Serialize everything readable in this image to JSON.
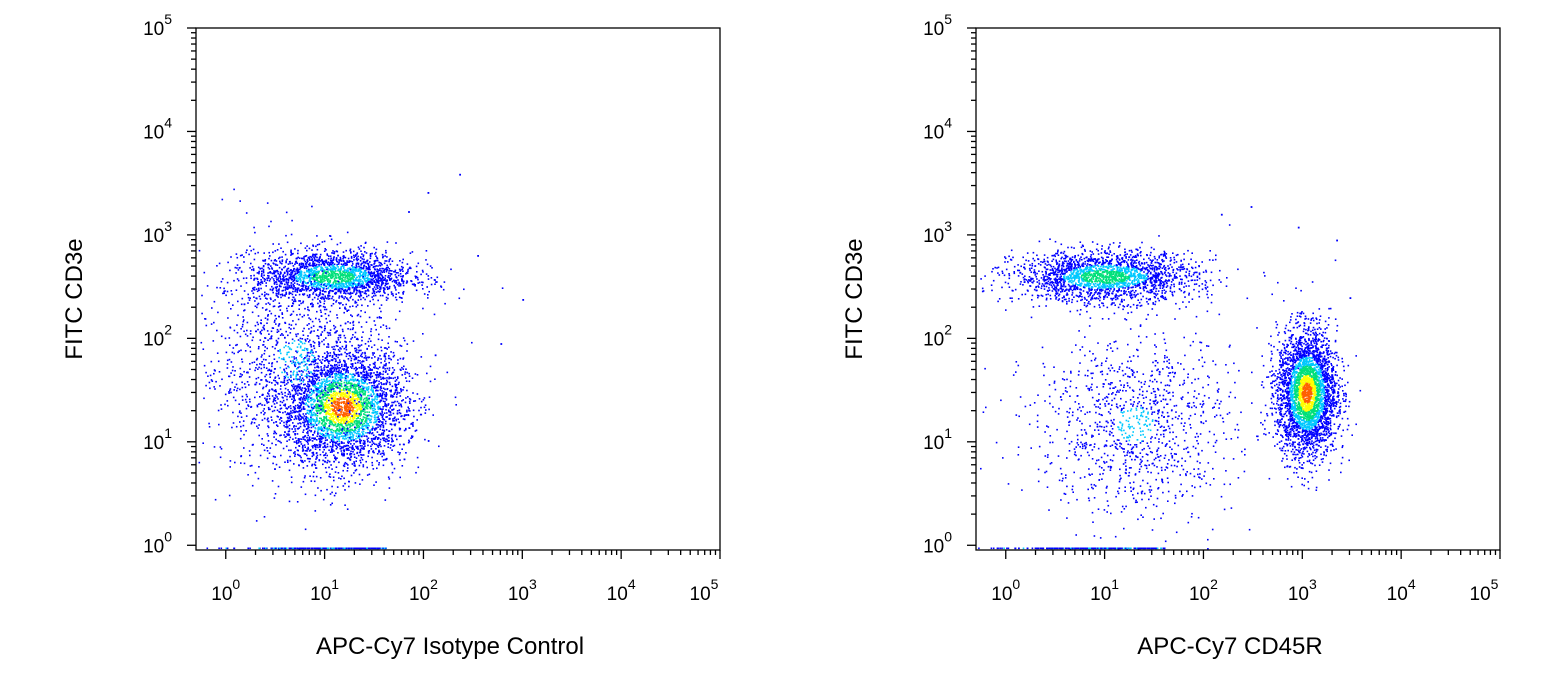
{
  "chart_data": [
    {
      "type": "scatter",
      "title": "",
      "xlabel": "APC-Cy7 Isotype Control",
      "ylabel": "FITC CD3e",
      "x_scale": "log",
      "y_scale": "log",
      "xlim": [
        0.5,
        100000
      ],
      "ylim": [
        0.9,
        100000
      ],
      "x_tick_labels": [
        {
          "base": "10",
          "exp": "0"
        },
        {
          "base": "10",
          "exp": "1"
        },
        {
          "base": "10",
          "exp": "2"
        },
        {
          "base": "10",
          "exp": "3"
        },
        {
          "base": "10",
          "exp": "4"
        },
        {
          "base": "10",
          "exp": "5"
        }
      ],
      "y_tick_labels": [
        {
          "base": "10",
          "exp": "0"
        },
        {
          "base": "10",
          "exp": "1"
        },
        {
          "base": "10",
          "exp": "2"
        },
        {
          "base": "10",
          "exp": "3"
        },
        {
          "base": "10",
          "exp": "4"
        },
        {
          "base": "10",
          "exp": "5"
        }
      ],
      "grid": false,
      "colormap": [
        "#0000ff",
        "#00c8ff",
        "#00e07a",
        "#ffff00",
        "#ff6000"
      ],
      "populations": [
        {
          "x": 15,
          "y": 22,
          "x_spread_decades": 0.32,
          "y_spread_decades": 0.28,
          "fraction": 0.5
        },
        {
          "x": 12,
          "y": 400,
          "x_spread_decades": 0.4,
          "y_spread_decades": 0.12,
          "fraction": 0.3
        },
        {
          "x": 5,
          "y": 60,
          "x_spread_decades": 0.5,
          "y_spread_decades": 0.55,
          "fraction": 0.2
        }
      ],
      "sparse_events": [
        {
          "x": 230,
          "y": 3900
        },
        {
          "x": 110,
          "y": 2600
        },
        {
          "x": 70,
          "y": 1700
        },
        {
          "x": 350,
          "y": 640
        },
        {
          "x": 1000,
          "y": 240
        },
        {
          "x": 600,
          "y": 90
        },
        {
          "x": 130,
          "y": 70
        }
      ]
    },
    {
      "type": "scatter",
      "title": "",
      "xlabel": "APC-Cy7 CD45R",
      "ylabel": "FITC CD3e",
      "x_scale": "log",
      "y_scale": "log",
      "xlim": [
        0.5,
        100000
      ],
      "ylim": [
        0.9,
        100000
      ],
      "x_tick_labels": [
        {
          "base": "10",
          "exp": "0"
        },
        {
          "base": "10",
          "exp": "1"
        },
        {
          "base": "10",
          "exp": "2"
        },
        {
          "base": "10",
          "exp": "3"
        },
        {
          "base": "10",
          "exp": "4"
        },
        {
          "base": "10",
          "exp": "5"
        }
      ],
      "y_tick_labels": [
        {
          "base": "10",
          "exp": "0"
        },
        {
          "base": "10",
          "exp": "1"
        },
        {
          "base": "10",
          "exp": "2"
        },
        {
          "base": "10",
          "exp": "3"
        },
        {
          "base": "10",
          "exp": "4"
        },
        {
          "base": "10",
          "exp": "5"
        }
      ],
      "grid": false,
      "colormap": [
        "#0000ff",
        "#00c8ff",
        "#00e07a",
        "#ffff00",
        "#ff6000"
      ],
      "populations": [
        {
          "x": 1100,
          "y": 30,
          "x_spread_decades": 0.15,
          "y_spread_decades": 0.3,
          "fraction": 0.5
        },
        {
          "x": 10,
          "y": 400,
          "x_spread_decades": 0.45,
          "y_spread_decades": 0.12,
          "fraction": 0.33
        },
        {
          "x": 20,
          "y": 15,
          "x_spread_decades": 0.5,
          "y_spread_decades": 0.45,
          "fraction": 0.17
        }
      ],
      "sparse_events": [
        {
          "x": 150,
          "y": 1600
        },
        {
          "x": 300,
          "y": 1900
        },
        {
          "x": 900,
          "y": 1200
        },
        {
          "x": 2200,
          "y": 900
        },
        {
          "x": 3000,
          "y": 250
        }
      ]
    }
  ]
}
